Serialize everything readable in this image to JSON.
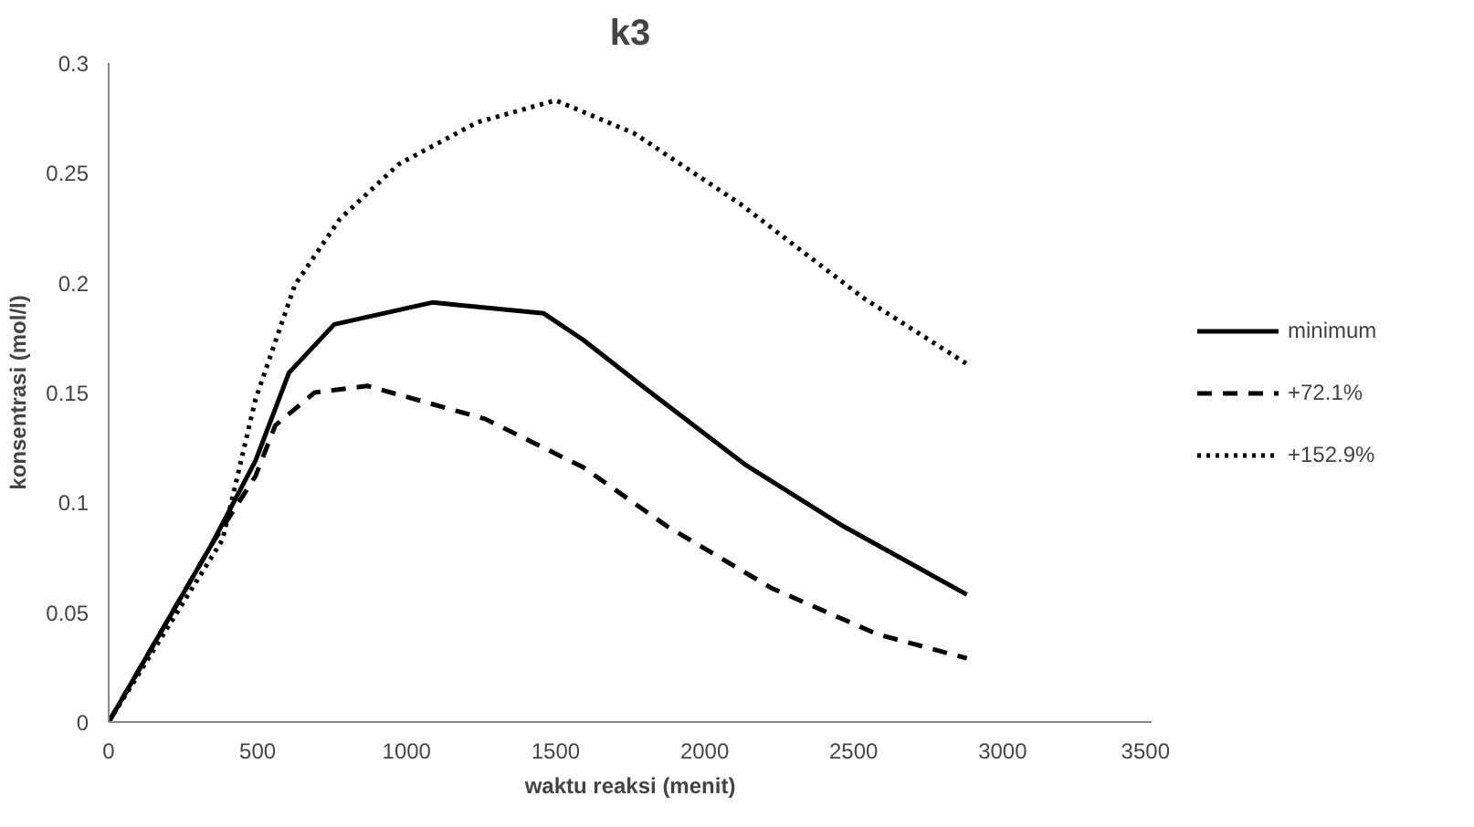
{
  "chart_data": {
    "type": "line",
    "title": "k3",
    "xlabel": "waktu reaksi (menit)",
    "ylabel": "konsentrasi (mol/l)",
    "xlim": [
      0,
      3500
    ],
    "ylim": [
      0,
      0.3
    ],
    "xticks": [
      0,
      500,
      1000,
      1500,
      2000,
      2500,
      3000,
      3500
    ],
    "yticks": [
      0,
      0.05,
      0.1,
      0.15,
      0.2,
      0.25,
      0.3
    ],
    "grid": false,
    "legend": "right",
    "marker": "none",
    "series": [
      {
        "name": "minimum",
        "color": "#000000",
        "line_style": "solid",
        "x": [
          0,
          342,
          493,
          605,
          757,
          1086,
          1460,
          1592,
          1809,
          2138,
          2467,
          2880
        ],
        "values": [
          0,
          0.08,
          0.119,
          0.159,
          0.181,
          0.191,
          0.186,
          0.174,
          0.151,
          0.117,
          0.089,
          0.058
        ]
      },
      {
        "name": "+72.1%",
        "color": "#000000",
        "line_style": "dashed",
        "x": [
          0,
          342,
          493,
          559,
          691,
          868,
          1263,
          1592,
          1875,
          2224,
          2579,
          2880
        ],
        "values": [
          0,
          0.08,
          0.112,
          0.135,
          0.15,
          0.153,
          0.138,
          0.116,
          0.089,
          0.061,
          0.04,
          0.029
        ]
      },
      {
        "name": "+152.9%",
        "color": "#000000",
        "line_style": "dotted",
        "x": [
          0,
          382,
          493,
          625,
          776,
          974,
          1237,
          1500,
          1763,
          2118,
          2533,
          2880
        ],
        "values": [
          0,
          0.083,
          0.147,
          0.199,
          0.229,
          0.254,
          0.273,
          0.283,
          0.268,
          0.236,
          0.193,
          0.163
        ]
      }
    ]
  }
}
